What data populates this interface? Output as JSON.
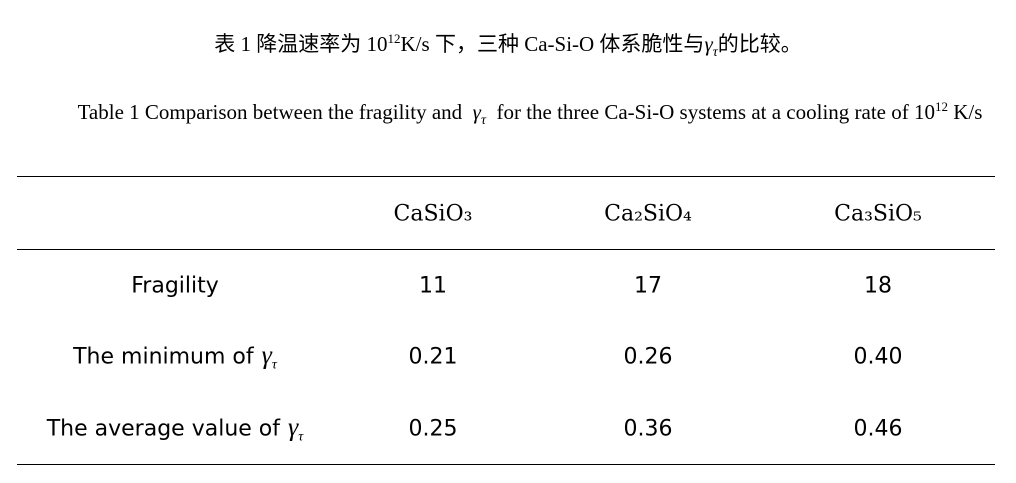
{
  "caption_cn": [
    "表 1  降温速率为 10",
    "12",
    "K/s 下，三种 Ca-Si-O 体系脆性与",
    "γ",
    "τ",
    "的比较。"
  ],
  "caption_en": [
    "Table 1 Comparison between the fragility and",
    "γ",
    "τ",
    "for the three Ca-Si-O systems at a cooling rate of 10",
    "12",
    " K/s"
  ],
  "table": {
    "header": [
      "CaSiO₃",
      "Ca₂SiO₄",
      "Ca₃SiO₅"
    ],
    "rows": [
      {
        "label": [
          "Fragility"
        ],
        "cells": [
          "11",
          "17",
          "18"
        ]
      },
      {
        "label": [
          "The minimum of",
          "γ",
          "τ"
        ],
        "cells": [
          "0.21",
          "0.26",
          "0.40"
        ]
      },
      {
        "label": [
          "The average value of",
          "γ",
          "τ"
        ],
        "cells": [
          "0.25",
          "0.36",
          "0.46"
        ]
      }
    ]
  }
}
